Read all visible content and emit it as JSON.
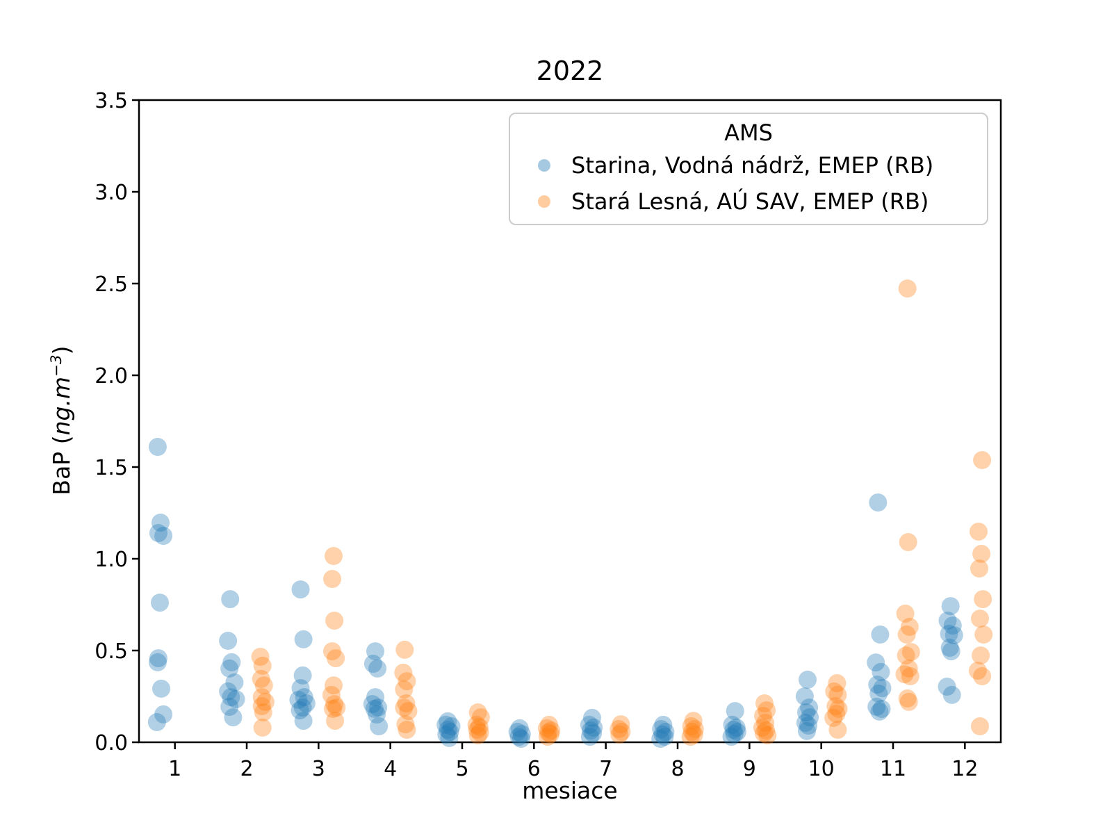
{
  "figure": {
    "title": "2022",
    "xlabel": "mesiace",
    "ylabel_prefix": "BaP  (",
    "ylabel_italic": "ng.m",
    "ylabel_sup": "−3",
    "ylabel_suffix": ")"
  },
  "legend": {
    "title": "AMS",
    "entries": [
      {
        "label": "Starina, Vodná nádrž, EMEP (RB)",
        "color": "#1f77b4"
      },
      {
        "label": "Stará Lesná, AÚ SAV, EMEP (RB)",
        "color": "#ff7f0e"
      }
    ]
  },
  "chart_data": {
    "type": "scatter",
    "title": "2022",
    "xlabel": "mesiace",
    "ylabel": "BaP (ng.m^-3)",
    "xlim": [
      0.5,
      12.5
    ],
    "ylim": [
      0.0,
      3.5
    ],
    "x_ticks": [
      1,
      2,
      3,
      4,
      5,
      6,
      7,
      8,
      9,
      10,
      11,
      12
    ],
    "y_ticks": [
      0.0,
      0.5,
      1.0,
      1.5,
      2.0,
      2.5,
      3.0,
      3.5
    ],
    "grid": false,
    "legend_title": "AMS",
    "legend_position": "upper right inside",
    "marker": {
      "radius_px": 13,
      "opacity": 0.35
    },
    "series": [
      {
        "name": "Starina, Vodná nádrž, EMEP (RB)",
        "color": "#1f77b4",
        "points": [
          [
            0.76,
            1.61
          ],
          [
            0.8,
            1.197
          ],
          [
            0.77,
            1.14
          ],
          [
            0.84,
            1.125
          ],
          [
            0.79,
            0.761
          ],
          [
            0.77,
            0.458
          ],
          [
            0.76,
            0.436
          ],
          [
            0.81,
            0.292
          ],
          [
            0.84,
            0.152
          ],
          [
            0.75,
            0.11
          ],
          [
            1.77,
            0.78
          ],
          [
            1.74,
            0.553
          ],
          [
            1.79,
            0.436
          ],
          [
            1.76,
            0.402
          ],
          [
            1.83,
            0.326
          ],
          [
            1.74,
            0.277
          ],
          [
            1.78,
            0.246
          ],
          [
            1.85,
            0.235
          ],
          [
            1.76,
            0.193
          ],
          [
            1.81,
            0.136
          ],
          [
            2.75,
            0.833
          ],
          [
            2.79,
            0.561
          ],
          [
            2.78,
            0.364
          ],
          [
            2.75,
            0.295
          ],
          [
            2.8,
            0.246
          ],
          [
            2.72,
            0.231
          ],
          [
            2.83,
            0.212
          ],
          [
            2.78,
            0.189
          ],
          [
            2.74,
            0.174
          ],
          [
            2.79,
            0.117
          ],
          [
            3.79,
            0.496
          ],
          [
            3.76,
            0.428
          ],
          [
            3.82,
            0.402
          ],
          [
            3.79,
            0.246
          ],
          [
            3.75,
            0.208
          ],
          [
            3.83,
            0.189
          ],
          [
            3.78,
            0.182
          ],
          [
            3.81,
            0.151
          ],
          [
            3.84,
            0.087
          ],
          [
            4.8,
            0.114
          ],
          [
            4.77,
            0.095
          ],
          [
            4.85,
            0.087
          ],
          [
            4.8,
            0.068
          ],
          [
            4.83,
            0.057
          ],
          [
            4.78,
            0.042
          ],
          [
            4.82,
            0.023
          ],
          [
            5.8,
            0.076
          ],
          [
            5.77,
            0.057
          ],
          [
            5.83,
            0.045
          ],
          [
            5.79,
            0.03
          ],
          [
            5.82,
            0.019
          ],
          [
            6.81,
            0.133
          ],
          [
            6.77,
            0.095
          ],
          [
            6.83,
            0.08
          ],
          [
            6.79,
            0.064
          ],
          [
            6.82,
            0.049
          ],
          [
            6.78,
            0.03
          ],
          [
            7.8,
            0.095
          ],
          [
            7.77,
            0.072
          ],
          [
            7.83,
            0.057
          ],
          [
            7.79,
            0.042
          ],
          [
            7.82,
            0.03
          ],
          [
            7.76,
            0.019
          ],
          [
            8.8,
            0.17
          ],
          [
            8.76,
            0.095
          ],
          [
            8.82,
            0.08
          ],
          [
            8.78,
            0.068
          ],
          [
            8.83,
            0.057
          ],
          [
            8.79,
            0.045
          ],
          [
            8.75,
            0.03
          ],
          [
            9.81,
            0.341
          ],
          [
            9.77,
            0.25
          ],
          [
            9.83,
            0.189
          ],
          [
            9.79,
            0.163
          ],
          [
            9.84,
            0.136
          ],
          [
            9.78,
            0.106
          ],
          [
            9.82,
            0.091
          ],
          [
            9.8,
            0.061
          ],
          [
            10.79,
            1.307
          ],
          [
            10.82,
            0.587
          ],
          [
            10.76,
            0.435
          ],
          [
            10.83,
            0.383
          ],
          [
            10.78,
            0.314
          ],
          [
            10.85,
            0.295
          ],
          [
            10.8,
            0.265
          ],
          [
            10.77,
            0.193
          ],
          [
            10.84,
            0.182
          ],
          [
            10.81,
            0.167
          ],
          [
            11.8,
            0.742
          ],
          [
            11.76,
            0.663
          ],
          [
            11.83,
            0.636
          ],
          [
            11.78,
            0.591
          ],
          [
            11.85,
            0.583
          ],
          [
            11.79,
            0.515
          ],
          [
            11.81,
            0.496
          ],
          [
            11.75,
            0.303
          ],
          [
            11.82,
            0.258
          ]
        ]
      },
      {
        "name": "Stará Lesná, AÚ SAV, EMEP (RB)",
        "color": "#ff7f0e",
        "points": [
          [
            2.19,
            0.466
          ],
          [
            2.22,
            0.417
          ],
          [
            2.2,
            0.345
          ],
          [
            2.24,
            0.31
          ],
          [
            2.21,
            0.246
          ],
          [
            2.26,
            0.22
          ],
          [
            2.21,
            0.197
          ],
          [
            2.23,
            0.163
          ],
          [
            2.22,
            0.08
          ],
          [
            3.21,
            1.015
          ],
          [
            3.19,
            0.89
          ],
          [
            3.22,
            0.663
          ],
          [
            3.19,
            0.496
          ],
          [
            3.24,
            0.458
          ],
          [
            3.21,
            0.31
          ],
          [
            3.18,
            0.258
          ],
          [
            3.22,
            0.208
          ],
          [
            3.25,
            0.189
          ],
          [
            3.2,
            0.182
          ],
          [
            3.23,
            0.117
          ],
          [
            4.2,
            0.504
          ],
          [
            4.18,
            0.379
          ],
          [
            4.23,
            0.333
          ],
          [
            4.19,
            0.288
          ],
          [
            4.22,
            0.212
          ],
          [
            4.19,
            0.189
          ],
          [
            4.25,
            0.17
          ],
          [
            4.21,
            0.098
          ],
          [
            4.23,
            0.068
          ],
          [
            5.22,
            0.163
          ],
          [
            5.26,
            0.136
          ],
          [
            5.2,
            0.095
          ],
          [
            5.24,
            0.083
          ],
          [
            5.21,
            0.068
          ],
          [
            5.25,
            0.053
          ],
          [
            5.22,
            0.038
          ],
          [
            6.21,
            0.095
          ],
          [
            6.18,
            0.076
          ],
          [
            6.24,
            0.064
          ],
          [
            6.2,
            0.053
          ],
          [
            6.23,
            0.045
          ],
          [
            6.19,
            0.03
          ],
          [
            7.21,
            0.098
          ],
          [
            7.18,
            0.072
          ],
          [
            7.22,
            0.057
          ],
          [
            7.19,
            0.042
          ],
          [
            8.22,
            0.117
          ],
          [
            8.19,
            0.087
          ],
          [
            8.24,
            0.072
          ],
          [
            8.2,
            0.057
          ],
          [
            8.23,
            0.042
          ],
          [
            8.18,
            0.03
          ],
          [
            9.21,
            0.212
          ],
          [
            9.24,
            0.174
          ],
          [
            9.19,
            0.144
          ],
          [
            9.22,
            0.106
          ],
          [
            9.18,
            0.08
          ],
          [
            9.23,
            0.064
          ],
          [
            9.2,
            0.049
          ],
          [
            9.25,
            0.038
          ],
          [
            10.22,
            0.322
          ],
          [
            10.18,
            0.277
          ],
          [
            10.23,
            0.258
          ],
          [
            10.2,
            0.197
          ],
          [
            10.24,
            0.182
          ],
          [
            10.21,
            0.155
          ],
          [
            10.17,
            0.133
          ],
          [
            10.23,
            0.068
          ],
          [
            11.2,
            2.473
          ],
          [
            11.21,
            1.091
          ],
          [
            11.17,
            0.701
          ],
          [
            11.23,
            0.629
          ],
          [
            11.19,
            0.587
          ],
          [
            11.25,
            0.492
          ],
          [
            11.18,
            0.473
          ],
          [
            11.22,
            0.402
          ],
          [
            11.16,
            0.371
          ],
          [
            11.24,
            0.36
          ],
          [
            11.2,
            0.239
          ],
          [
            11.22,
            0.22
          ],
          [
            12.24,
            1.538
          ],
          [
            12.19,
            1.148
          ],
          [
            12.23,
            1.027
          ],
          [
            12.2,
            0.947
          ],
          [
            12.25,
            0.78
          ],
          [
            12.21,
            0.674
          ],
          [
            12.26,
            0.587
          ],
          [
            12.22,
            0.473
          ],
          [
            12.18,
            0.39
          ],
          [
            12.24,
            0.36
          ],
          [
            12.21,
            0.087
          ]
        ]
      }
    ]
  }
}
